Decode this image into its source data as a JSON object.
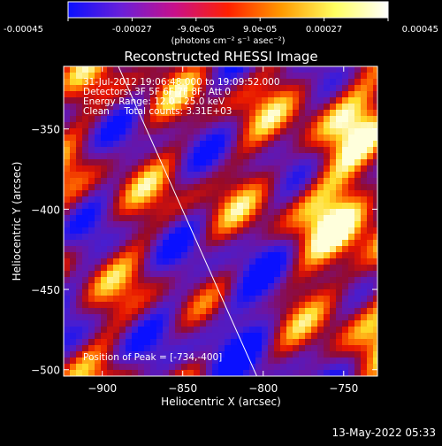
{
  "colorbar": {
    "tick_labels": [
      "-0.00045",
      "-0.00027",
      "-9.0e-05",
      "9.0e-05",
      "0.00027",
      "0.00045"
    ],
    "tick_values": [
      -0.00045,
      -0.00027,
      -9e-05,
      9e-05,
      0.00027,
      0.00045
    ],
    "range": [
      -0.00045,
      0.00045
    ],
    "unit_label": "(photons cm⁻² s⁻¹ asec⁻²)",
    "colors": [
      "#0a10ff",
      "#6a1fd8",
      "#c8108a",
      "#ff2000",
      "#ff9a00",
      "#ffff60",
      "#ffffff"
    ]
  },
  "chart_data": {
    "type": "heatmap",
    "title": "Reconstructed RHESSI Image",
    "xlabel": "Heliocentric X (arcsec)",
    "ylabel": "Heliocentric Y (arcsec)",
    "xlim": [
      -924,
      -729
    ],
    "ylim": [
      -504,
      -311
    ],
    "x_ticks": [
      -900,
      -850,
      -800,
      -750
    ],
    "y_ticks": [
      -350,
      -400,
      -450,
      -500
    ],
    "x_tick_labels": [
      "−900",
      "−850",
      "−800",
      "−750"
    ],
    "y_tick_labels": [
      "−350",
      "−400",
      "−450",
      "−500"
    ],
    "limb_line": {
      "x": [
        -890,
        -804
      ],
      "y": [
        -311,
        -504
      ]
    },
    "peak": {
      "x": -734,
      "y": -400
    },
    "annotations": [
      "31-Jul-2012 19:06:48.000 to 19:09:52.000",
      "Detectors: 3F 5F 6F 7F 8F, Att 0",
      "Energy Range: 12.0 - 25.0 keV",
      "Clean     Total counts: 3.31E+03"
    ],
    "peak_label": "Position of Peak = [-734,-400]"
  },
  "footer": {
    "date": "13-May-2022 05:33"
  }
}
